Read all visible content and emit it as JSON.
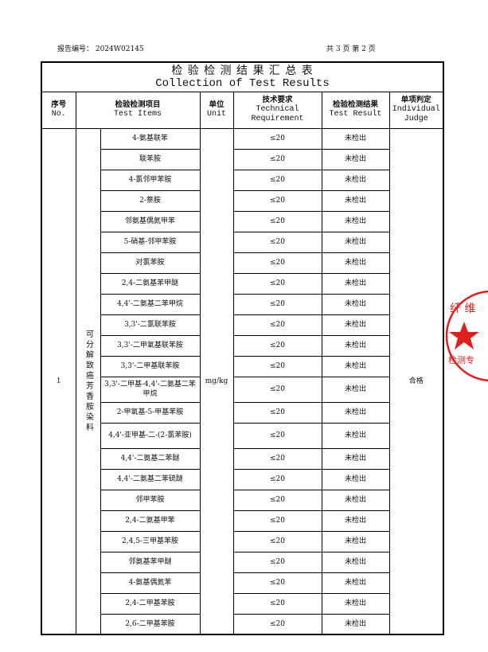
{
  "header": {
    "report_no": "报告编号： 2024W02145",
    "pages": "共 3 页   第 2 页"
  },
  "table": {
    "title_cn": "检 验 检 测 结 果 汇 总 表",
    "title_en": "Collection of Test Results",
    "columns": [
      {
        "cn": "序号",
        "en": "No."
      },
      {
        "cn": "检验检测项目",
        "en": "Test Items"
      },
      {
        "cn": "单位",
        "en": "Unit"
      },
      {
        "cn": "技术要求",
        "en": "Technical Requirement"
      },
      {
        "cn": "检验检测结果",
        "en": "Test Result"
      },
      {
        "cn": "单项判定",
        "en": "Individual Judge"
      }
    ],
    "no": "1",
    "category": "可分解致癌芳香胺染料",
    "unit": "mg/kg",
    "judge": "合格",
    "rows": [
      {
        "item": "4-氨基联苯",
        "requirement": "≤20",
        "result": "未检出"
      },
      {
        "item": "联苯胺",
        "requirement": "≤20",
        "result": "未检出"
      },
      {
        "item": "4-氯邻甲苯胺",
        "requirement": "≤20",
        "result": "未检出"
      },
      {
        "item": "2-萘胺",
        "requirement": "≤20",
        "result": "未检出"
      },
      {
        "item": "邻氨基偶氮甲苯",
        "requirement": "≤20",
        "result": "未检出"
      },
      {
        "item": "5-硝基-邻甲苯胺",
        "requirement": "≤20",
        "result": "未检出"
      },
      {
        "item": "对氯苯胺",
        "requirement": "≤20",
        "result": "未检出"
      },
      {
        "item": "2,4-二氨基苯甲醚",
        "requirement": "≤20",
        "result": "未检出"
      },
      {
        "item": "4,4'-二氨基二苯甲烷",
        "requirement": "≤20",
        "result": "未检出"
      },
      {
        "item": "3,3'-二氯联苯胺",
        "requirement": "≤20",
        "result": "未检出"
      },
      {
        "item": "3,3'-二甲氧基联苯胺",
        "requirement": "≤20",
        "result": "未检出"
      },
      {
        "item": "3,3'-二甲基联苯胺",
        "requirement": "≤20",
        "result": "未检出"
      },
      {
        "item": "3,3'-二甲基-4,4'-二氨基二苯甲烷",
        "requirement": "≤20",
        "result": "未检出"
      },
      {
        "item": "2-甲氧基-5-甲基苯胺",
        "requirement": "≤20",
        "result": "未检出"
      },
      {
        "item": "4,4'-亚甲基-二-(2-氯苯胺)",
        "requirement": "≤20",
        "result": "未检出"
      },
      {
        "item": "4,4'-二氨基二苯醚",
        "requirement": "≤20",
        "result": "未检出"
      },
      {
        "item": "4,4'-二氨基二苯硫醚",
        "requirement": "≤20",
        "result": "未检出"
      },
      {
        "item": "邻甲苯胺",
        "requirement": "≤20",
        "result": "未检出"
      },
      {
        "item": "2,4-二氨基甲苯",
        "requirement": "≤20",
        "result": "未检出"
      },
      {
        "item": "2,4,5-三甲基苯胺",
        "requirement": "≤20",
        "result": "未检出"
      },
      {
        "item": "邻氨基苯甲醚",
        "requirement": "≤20",
        "result": "未检出"
      },
      {
        "item": "4-氨基偶氮苯",
        "requirement": "≤20",
        "result": "未检出"
      },
      {
        "item": "2,4-二甲基苯胺",
        "requirement": "≤20",
        "result": "未检出"
      },
      {
        "item": "2,6-二甲基苯胺",
        "requirement": "≤20",
        "result": "未检出"
      }
    ]
  },
  "stamp": {
    "top": "纤 维",
    "bottom": "检测专"
  }
}
